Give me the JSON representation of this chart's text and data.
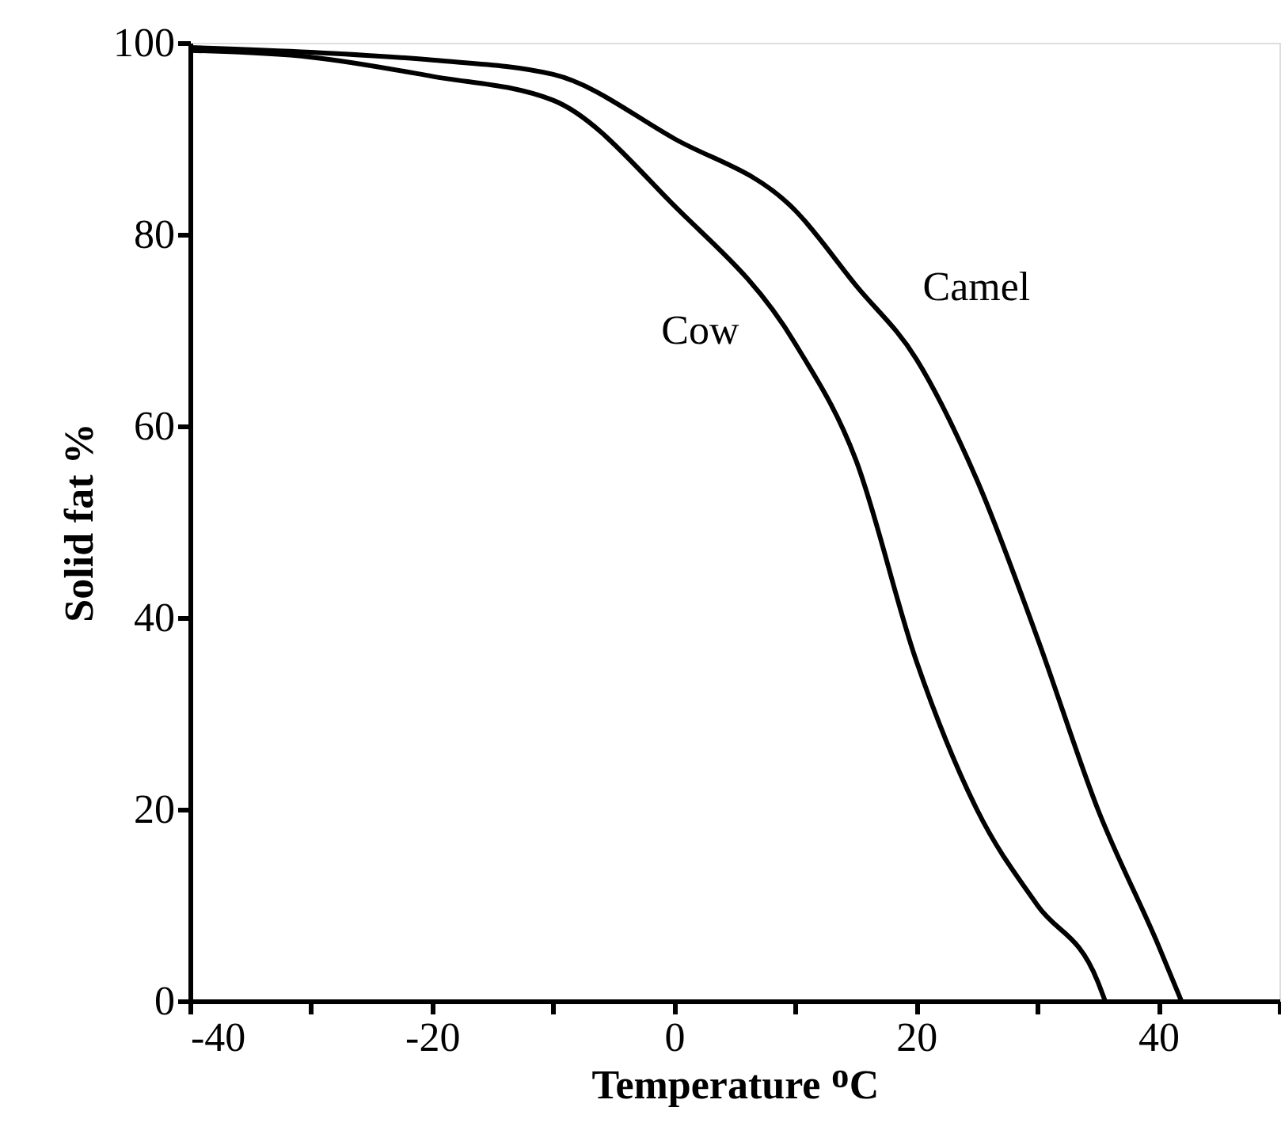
{
  "chart_data": {
    "type": "line",
    "xlabel": "Temperature ᴼC",
    "ylabel": "Solid fat %",
    "xlim": [
      -40,
      50
    ],
    "ylim": [
      0,
      100
    ],
    "xticks": [
      -40,
      {
        "value": -30,
        "label": null
      },
      -20,
      {
        "value": -10,
        "label": null
      },
      0,
      {
        "value": 10,
        "label": null
      },
      20,
      {
        "value": 30,
        "label": null
      },
      40,
      {
        "value": 50,
        "label": null
      }
    ],
    "yticks": [
      0,
      20,
      40,
      60,
      80,
      100
    ],
    "grid": false,
    "legend": false,
    "marker": "none",
    "line_style": "solid",
    "series": [
      {
        "name": "Cow",
        "color": "#000000",
        "x": [
          -40,
          -30,
          -20,
          -10,
          0,
          10,
          15,
          20,
          25,
          30,
          35,
          35.6
        ],
        "values": [
          99.2,
          98.5,
          96.5,
          94,
          83,
          68.6,
          56.5,
          35.5,
          20,
          10,
          2,
          0
        ]
      },
      {
        "name": "Camel",
        "color": "#000000",
        "x": [
          -40,
          -30,
          -20,
          -10,
          0,
          10,
          15,
          20,
          25,
          30,
          35,
          40,
          41.9
        ],
        "values": [
          99.5,
          99,
          98.2,
          96.7,
          90,
          82.5,
          74.7,
          67,
          54.4,
          37.9,
          20,
          5.8,
          0
        ]
      }
    ]
  }
}
